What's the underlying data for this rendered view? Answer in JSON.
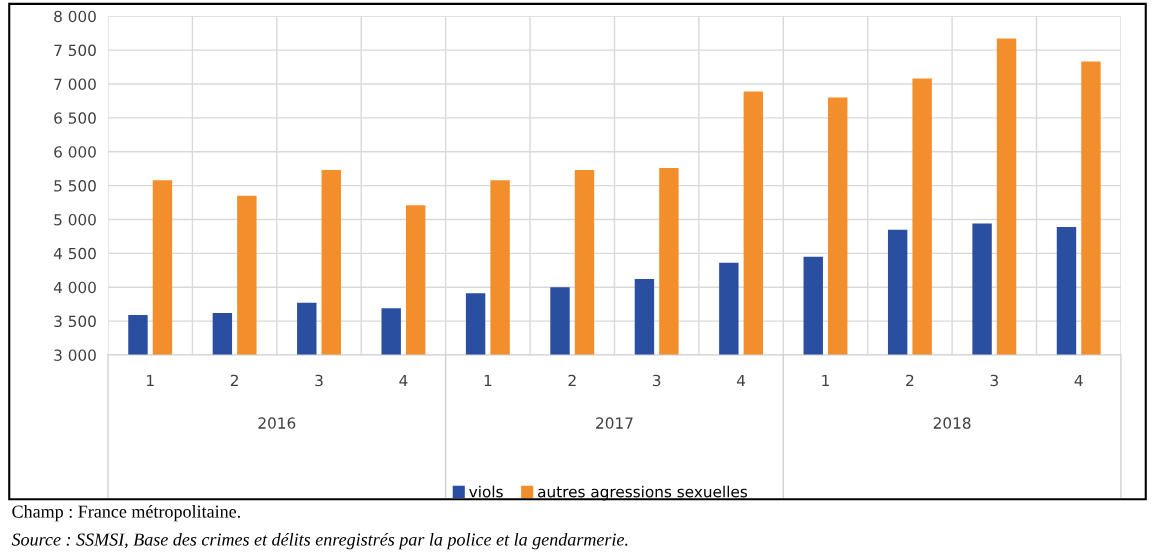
{
  "chart_data": {
    "type": "bar",
    "categories": [
      "1",
      "2",
      "3",
      "4",
      "1",
      "2",
      "3",
      "4",
      "1",
      "2",
      "3",
      "4"
    ],
    "series": [
      {
        "name": "viols",
        "color": "#2a4ea0",
        "values": [
          3590,
          3620,
          3770,
          3690,
          3910,
          4000,
          4120,
          4360,
          4450,
          4850,
          4940,
          4890
        ]
      },
      {
        "name": "autres agressions sexuelles",
        "color": "#f28e2b",
        "values": [
          5580,
          5350,
          5730,
          5210,
          5580,
          5730,
          5760,
          6890,
          6800,
          7080,
          7670,
          7330
        ]
      }
    ],
    "ylim": [
      3000,
      8000
    ],
    "yticks": [
      {
        "value": 3000,
        "label": "3 000"
      },
      {
        "value": 3500,
        "label": "3 500"
      },
      {
        "value": 4000,
        "label": "4 000"
      },
      {
        "value": 4500,
        "label": "4 500"
      },
      {
        "value": 5000,
        "label": "5 000"
      },
      {
        "value": 5500,
        "label": "5 500"
      },
      {
        "value": 6000,
        "label": "6 000"
      },
      {
        "value": 6500,
        "label": "6 500"
      },
      {
        "value": 7000,
        "label": "7 000"
      },
      {
        "value": 7500,
        "label": "7 500"
      },
      {
        "value": 8000,
        "label": "8 000"
      }
    ],
    "grid": true,
    "legend": "bottom",
    "annotations": [
      "2016",
      "2017",
      "2018",
      "Champ : France métropolitaine.",
      "Source : SSMSI, Base des crimes et délits enregistrés par la police et la gendarmerie."
    ]
  }
}
